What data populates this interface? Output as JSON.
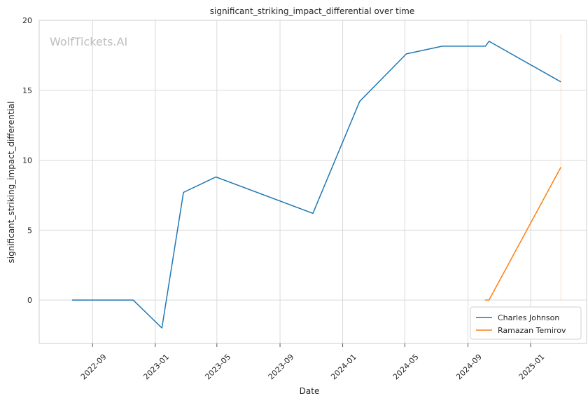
{
  "watermark": "WolfTickets.AI",
  "chart_data": {
    "type": "line",
    "title": "significant_striking_impact_differential over time",
    "xlabel": "Date",
    "ylabel": "significant_striking_impact_differential",
    "xlim": [
      "2022-05-20",
      "2025-04-20"
    ],
    "ylim": [
      -3.1,
      20
    ],
    "yticks": [
      0,
      5,
      10,
      15,
      20
    ],
    "xticks": [
      "2022-09-01",
      "2023-01-01",
      "2023-05-01",
      "2023-09-01",
      "2024-01-01",
      "2024-05-01",
      "2024-09-01",
      "2025-01-01"
    ],
    "xtick_labels": [
      "2022-09",
      "2023-01",
      "2023-05",
      "2023-09",
      "2024-01",
      "2024-05",
      "2024-09",
      "2025-01"
    ],
    "grid": true,
    "legend_position": "bottom-right",
    "series": [
      {
        "name": "Charles Johnson",
        "color": "#1f77b4",
        "points": [
          {
            "x": "2022-07-23",
            "y": 0
          },
          {
            "x": "2022-11-19",
            "y": 0
          },
          {
            "x": "2023-01-14",
            "y": -2
          },
          {
            "x": "2023-02-25",
            "y": 7.7
          },
          {
            "x": "2023-04-29",
            "y": 8.8
          },
          {
            "x": "2023-11-04",
            "y": 6.2
          },
          {
            "x": "2024-02-03",
            "y": 14.2
          },
          {
            "x": "2024-05-04",
            "y": 17.6
          },
          {
            "x": "2024-07-13",
            "y": 18.15
          },
          {
            "x": "2024-10-05",
            "y": 18.15
          },
          {
            "x": "2024-10-12",
            "y": 18.5
          },
          {
            "x": "2025-03-01",
            "y": 15.6
          }
        ]
      },
      {
        "name": "Ramazan Temirov",
        "color": "#ff7f0e",
        "points": [
          {
            "x": "2024-10-04",
            "y": 0
          },
          {
            "x": "2024-10-12",
            "y": 0
          },
          {
            "x": "2025-03-01",
            "y": 9.5
          }
        ]
      }
    ],
    "annotation_vline": {
      "x": "2025-03-01",
      "y_range": [
        0,
        19
      ]
    }
  }
}
